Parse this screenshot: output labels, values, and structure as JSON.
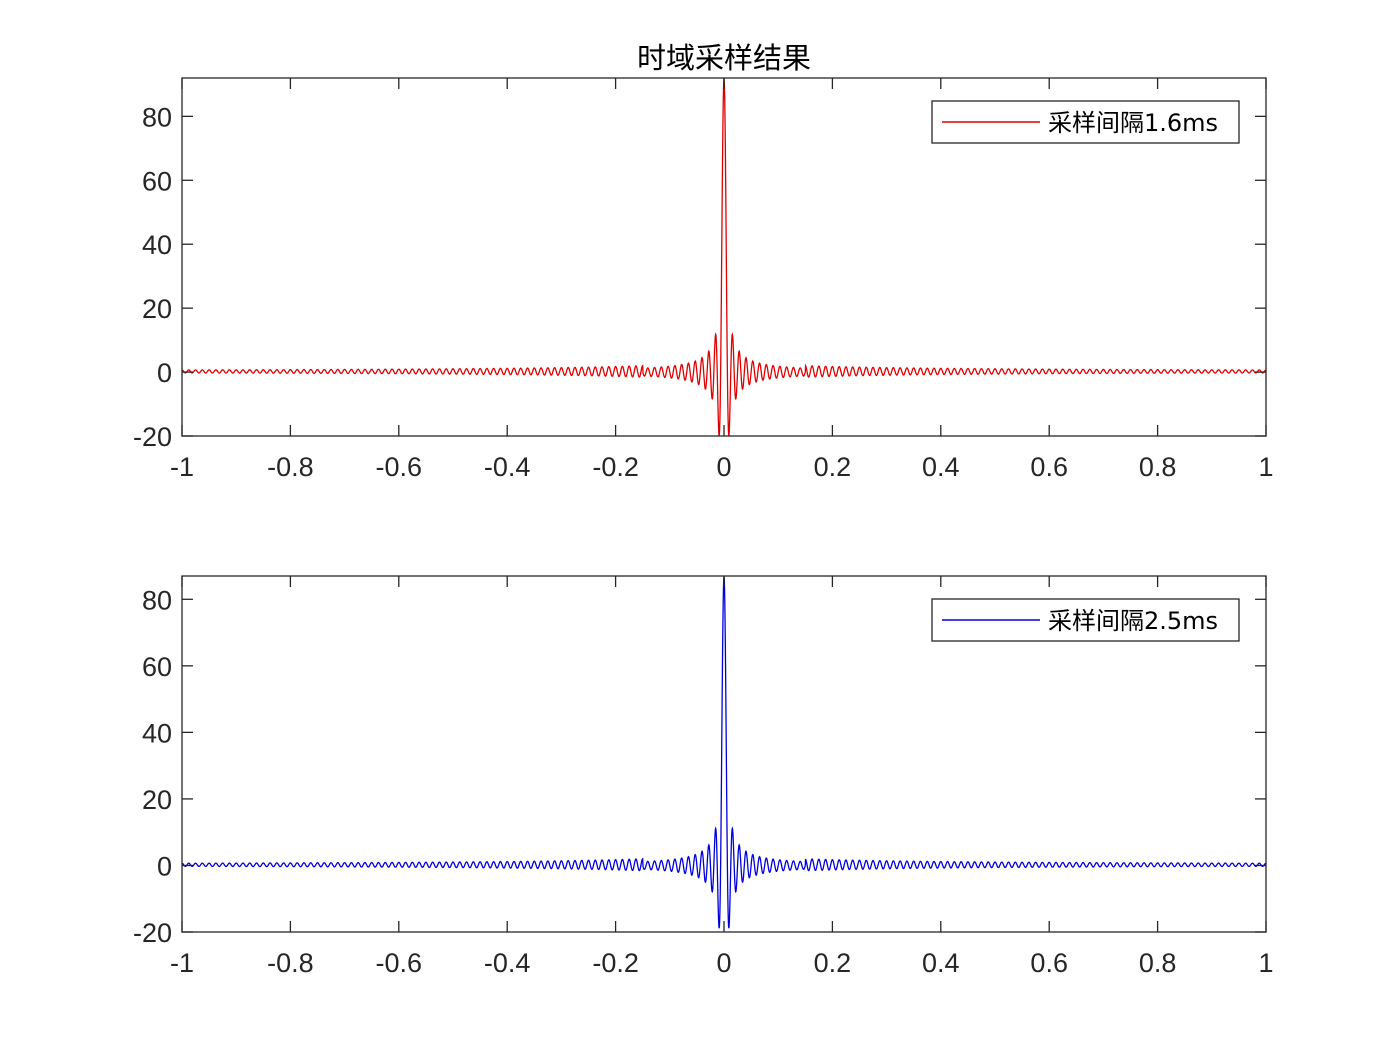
{
  "figure_title": "时域采样结果",
  "colors": {
    "axes": "#262626",
    "series_1": "#e00000",
    "series_2": "#0000e0"
  },
  "chart_data": [
    {
      "type": "line",
      "title": "时域采样结果",
      "xlabel": "",
      "ylabel": "",
      "xlim": [
        -1,
        1
      ],
      "ylim": [
        -20,
        92
      ],
      "xticks": [
        -1,
        -0.8,
        -0.6,
        -0.4,
        -0.2,
        0,
        0.2,
        0.4,
        0.6,
        0.8,
        1
      ],
      "xtick_labels": [
        "-1",
        "-0.8",
        "-0.6",
        "-0.4",
        "-0.2",
        "0",
        "0.2",
        "0.4",
        "0.6",
        "0.8",
        "1"
      ],
      "yticks": [
        -20,
        0,
        20,
        40,
        60,
        80
      ],
      "ytick_labels": [
        "-20",
        "0",
        "20",
        "40",
        "60",
        "80"
      ],
      "grid": false,
      "legend_position": "top-right",
      "series": [
        {
          "name": "采样间隔1.6ms",
          "color": "#e00000",
          "description_of_shape": "sinc-like oscillation centered at t=0",
          "x": [
            -1,
            -0.9,
            -0.8,
            -0.6,
            -0.4,
            -0.3,
            -0.2,
            -0.15,
            -0.1,
            -0.08,
            -0.06,
            -0.05,
            -0.04,
            -0.025,
            -0.015,
            0,
            0.015,
            0.025,
            0.04,
            0.05,
            0.06,
            0.08,
            0.1,
            0.15,
            0.2,
            0.3,
            0.4,
            0.6,
            0.8,
            0.9,
            1
          ],
          "y": [
            0.5,
            0.6,
            0.7,
            0.9,
            1.5,
            2,
            3,
            4,
            6,
            -7,
            7,
            -9,
            12,
            -20,
            -20,
            92,
            -20,
            -20,
            12,
            -9,
            7,
            -7,
            6,
            4,
            3,
            2,
            1.5,
            0.9,
            0.7,
            0.6,
            0.5
          ],
          "peak": 92,
          "first_sidelobe": 12,
          "min": -20,
          "oscillation_period": 0.0125
        }
      ]
    },
    {
      "type": "line",
      "title": "",
      "xlabel": "",
      "ylabel": "",
      "xlim": [
        -1,
        1
      ],
      "ylim": [
        -20,
        87
      ],
      "xticks": [
        -1,
        -0.8,
        -0.6,
        -0.4,
        -0.2,
        0,
        0.2,
        0.4,
        0.6,
        0.8,
        1
      ],
      "xtick_labels": [
        "-1",
        "-0.8",
        "-0.6",
        "-0.4",
        "-0.2",
        "0",
        "0.2",
        "0.4",
        "0.6",
        "0.8",
        "1"
      ],
      "yticks": [
        -20,
        0,
        20,
        40,
        60,
        80
      ],
      "ytick_labels": [
        "-20",
        "0",
        "20",
        "40",
        "60",
        "80"
      ],
      "grid": false,
      "legend_position": "top-right",
      "series": [
        {
          "name": "采样间隔2.5ms",
          "color": "#0000e0",
          "description_of_shape": "sinc-like oscillation centered at t=0",
          "x": [
            -1,
            -0.9,
            -0.8,
            -0.6,
            -0.4,
            -0.3,
            -0.2,
            -0.15,
            -0.1,
            -0.08,
            -0.06,
            -0.05,
            -0.04,
            -0.025,
            -0.015,
            0,
            0.015,
            0.025,
            0.04,
            0.05,
            0.06,
            0.08,
            0.1,
            0.15,
            0.2,
            0.3,
            0.4,
            0.6,
            0.8,
            0.9,
            1
          ],
          "y": [
            0.5,
            0.6,
            0.7,
            0.9,
            1.5,
            2,
            3,
            4,
            6,
            -7,
            7,
            -9,
            12,
            -20,
            -20,
            87,
            -20,
            -20,
            12,
            -9,
            7,
            -7,
            6,
            4,
            3,
            2,
            1.5,
            0.9,
            0.7,
            0.6,
            0.5
          ],
          "peak": 87,
          "first_sidelobe": 12,
          "min": -20,
          "oscillation_period": 0.0125
        }
      ]
    }
  ]
}
